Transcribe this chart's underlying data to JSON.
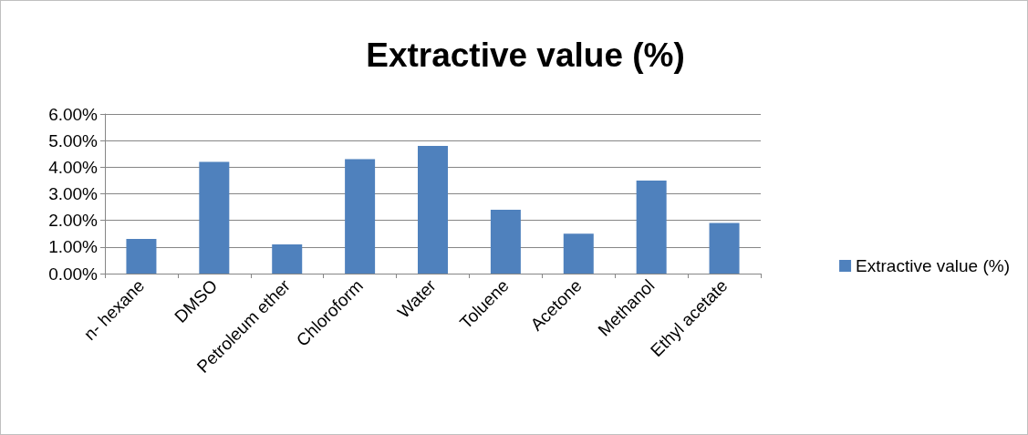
{
  "chart_data": {
    "type": "bar",
    "title": "Extractive value (%)",
    "categories": [
      "n- hexane",
      "DMSO",
      "Petroleum ether",
      "Chloroform",
      "Water",
      "Toluene",
      "Acetone",
      "Methanol",
      "Ethyl acetate"
    ],
    "series": [
      {
        "name": "Extractive value (%)",
        "color": "#4f81bd",
        "values": [
          1.3,
          4.2,
          1.1,
          4.3,
          4.8,
          2.4,
          1.5,
          3.5,
          1.9
        ]
      }
    ],
    "ylim": [
      0,
      6
    ],
    "yticks": [
      {
        "value": 0,
        "label": "0.00%"
      },
      {
        "value": 1,
        "label": "1.00%"
      },
      {
        "value": 2,
        "label": "2.00%"
      },
      {
        "value": 3,
        "label": "3.00%"
      },
      {
        "value": 4,
        "label": "4.00%"
      },
      {
        "value": 5,
        "label": "5.00%"
      },
      {
        "value": 6,
        "label": "6.00%"
      }
    ],
    "grid": "y",
    "legend": "right"
  }
}
